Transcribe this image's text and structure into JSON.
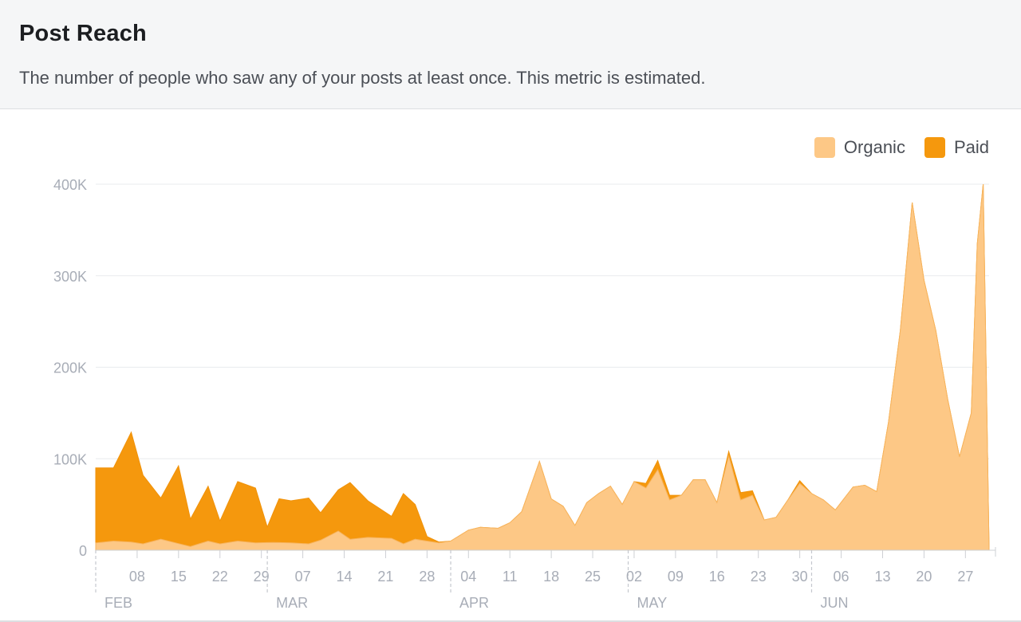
{
  "header": {
    "title": "Post Reach",
    "subtitle": "The number of people who saw any of your posts at least once. This metric is estimated."
  },
  "legend": [
    {
      "label": "Organic",
      "color": "#fdc886"
    },
    {
      "label": "Paid",
      "color": "#f5980d"
    }
  ],
  "chart_data": {
    "type": "area",
    "stacked": true,
    "title": "Post Reach",
    "xlabel": "",
    "ylabel": "",
    "x_range": [
      "2020-02-01",
      "2020-06-30"
    ],
    "ylim": [
      0,
      400000
    ],
    "y_ticks": [
      {
        "value": 0,
        "label": "0"
      },
      {
        "value": 100000,
        "label": "100K"
      },
      {
        "value": 200000,
        "label": "200K"
      },
      {
        "value": 300000,
        "label": "300K"
      },
      {
        "value": 400000,
        "label": "400K"
      }
    ],
    "x_day_ticks": [
      {
        "date": "2020-02-08",
        "label": "08"
      },
      {
        "date": "2020-02-15",
        "label": "15"
      },
      {
        "date": "2020-02-22",
        "label": "22"
      },
      {
        "date": "2020-02-29",
        "label": "29"
      },
      {
        "date": "2020-03-07",
        "label": "07"
      },
      {
        "date": "2020-03-14",
        "label": "14"
      },
      {
        "date": "2020-03-21",
        "label": "21"
      },
      {
        "date": "2020-03-28",
        "label": "28"
      },
      {
        "date": "2020-04-04",
        "label": "04"
      },
      {
        "date": "2020-04-11",
        "label": "11"
      },
      {
        "date": "2020-04-18",
        "label": "18"
      },
      {
        "date": "2020-04-25",
        "label": "25"
      },
      {
        "date": "2020-05-02",
        "label": "02"
      },
      {
        "date": "2020-05-09",
        "label": "09"
      },
      {
        "date": "2020-05-16",
        "label": "16"
      },
      {
        "date": "2020-05-23",
        "label": "23"
      },
      {
        "date": "2020-05-30",
        "label": "30"
      },
      {
        "date": "2020-06-06",
        "label": "06"
      },
      {
        "date": "2020-06-13",
        "label": "13"
      },
      {
        "date": "2020-06-20",
        "label": "20"
      },
      {
        "date": "2020-06-27",
        "label": "27"
      }
    ],
    "x_month_ticks": [
      {
        "date": "2020-02-01",
        "label": "FEB"
      },
      {
        "date": "2020-03-01",
        "label": "MAR"
      },
      {
        "date": "2020-04-01",
        "label": "APR"
      },
      {
        "date": "2020-05-01",
        "label": "MAY"
      },
      {
        "date": "2020-06-01",
        "label": "JUN"
      }
    ],
    "grid": true,
    "legend_position": "top-right",
    "series": [
      {
        "name": "Organic",
        "color": "#fdc886",
        "points": [
          [
            "2020-02-01",
            8000
          ],
          [
            "2020-02-04",
            10000
          ],
          [
            "2020-02-07",
            9000
          ],
          [
            "2020-02-09",
            7000
          ],
          [
            "2020-02-12",
            12000
          ],
          [
            "2020-02-17",
            4000
          ],
          [
            "2020-02-20",
            10000
          ],
          [
            "2020-02-22",
            7000
          ],
          [
            "2020-02-25",
            10000
          ],
          [
            "2020-02-28",
            8000
          ],
          [
            "2020-03-02",
            8500
          ],
          [
            "2020-03-05",
            8000
          ],
          [
            "2020-03-08",
            7000
          ],
          [
            "2020-03-10",
            11000
          ],
          [
            "2020-03-13",
            21000
          ],
          [
            "2020-03-15",
            12000
          ],
          [
            "2020-03-18",
            14000
          ],
          [
            "2020-03-22",
            13000
          ],
          [
            "2020-03-24",
            7000
          ],
          [
            "2020-03-26",
            12000
          ],
          [
            "2020-03-28",
            10000
          ],
          [
            "2020-03-30",
            8000
          ],
          [
            "2020-04-01",
            10000
          ],
          [
            "2020-04-04",
            22000
          ],
          [
            "2020-04-06",
            25000
          ],
          [
            "2020-04-09",
            24000
          ],
          [
            "2020-04-11",
            30000
          ],
          [
            "2020-04-13",
            42000
          ],
          [
            "2020-04-16",
            97000
          ],
          [
            "2020-04-18",
            56000
          ],
          [
            "2020-04-20",
            48000
          ],
          [
            "2020-04-22",
            27000
          ],
          [
            "2020-04-24",
            52000
          ],
          [
            "2020-04-26",
            62000
          ],
          [
            "2020-04-28",
            70000
          ],
          [
            "2020-04-30",
            50000
          ],
          [
            "2020-05-02",
            75000
          ],
          [
            "2020-05-04",
            68000
          ],
          [
            "2020-05-06",
            88000
          ],
          [
            "2020-05-08",
            55000
          ],
          [
            "2020-05-10",
            60000
          ],
          [
            "2020-05-12",
            77000
          ],
          [
            "2020-05-14",
            77000
          ],
          [
            "2020-05-16",
            52000
          ],
          [
            "2020-05-18",
            103000
          ],
          [
            "2020-05-20",
            55000
          ],
          [
            "2020-05-22",
            60000
          ],
          [
            "2020-05-24",
            33000
          ],
          [
            "2020-05-26",
            36000
          ],
          [
            "2020-05-28",
            55000
          ],
          [
            "2020-05-30",
            73000
          ],
          [
            "2020-06-01",
            62000
          ],
          [
            "2020-06-03",
            55000
          ],
          [
            "2020-06-05",
            44000
          ],
          [
            "2020-06-08",
            69000
          ],
          [
            "2020-06-10",
            71000
          ],
          [
            "2020-06-12",
            64000
          ],
          [
            "2020-06-14",
            140000
          ],
          [
            "2020-06-16",
            240000
          ],
          [
            "2020-06-18",
            380000
          ],
          [
            "2020-06-20",
            295000
          ],
          [
            "2020-06-22",
            240000
          ],
          [
            "2020-06-24",
            165000
          ],
          [
            "2020-06-26",
            102000
          ],
          [
            "2020-06-28",
            150000
          ],
          [
            "2020-06-29",
            335000
          ],
          [
            "2020-06-30",
            400000
          ],
          [
            "2020-07-01",
            290000
          ]
        ]
      },
      {
        "name": "Paid",
        "color": "#f5980d",
        "points": [
          [
            "2020-02-01",
            82000
          ],
          [
            "2020-02-04",
            80000
          ],
          [
            "2020-02-07",
            120000
          ],
          [
            "2020-02-09",
            75000
          ],
          [
            "2020-02-12",
            45000
          ],
          [
            "2020-02-15",
            85000
          ],
          [
            "2020-02-17",
            30000
          ],
          [
            "2020-02-20",
            60000
          ],
          [
            "2020-02-22",
            25000
          ],
          [
            "2020-02-25",
            65000
          ],
          [
            "2020-02-28",
            60000
          ],
          [
            "2020-03-01",
            17000
          ],
          [
            "2020-03-03",
            48000
          ],
          [
            "2020-03-05",
            46000
          ],
          [
            "2020-03-08",
            50000
          ],
          [
            "2020-03-10",
            30000
          ],
          [
            "2020-03-13",
            45000
          ],
          [
            "2020-03-15",
            62000
          ],
          [
            "2020-03-18",
            40000
          ],
          [
            "2020-03-22",
            24000
          ],
          [
            "2020-03-24",
            55000
          ],
          [
            "2020-03-26",
            38000
          ],
          [
            "2020-03-28",
            5000
          ],
          [
            "2020-03-30",
            1000
          ],
          [
            "2020-04-01",
            0
          ],
          [
            "2020-05-02",
            0
          ],
          [
            "2020-05-04",
            5000
          ],
          [
            "2020-05-06",
            10000
          ],
          [
            "2020-05-08",
            5000
          ],
          [
            "2020-05-10",
            0
          ],
          [
            "2020-05-16",
            0
          ],
          [
            "2020-05-18",
            5000
          ],
          [
            "2020-05-20",
            8000
          ],
          [
            "2020-05-22",
            5000
          ],
          [
            "2020-05-24",
            0
          ],
          [
            "2020-05-28",
            0
          ],
          [
            "2020-05-30",
            3000
          ],
          [
            "2020-06-01",
            0
          ]
        ]
      }
    ]
  }
}
